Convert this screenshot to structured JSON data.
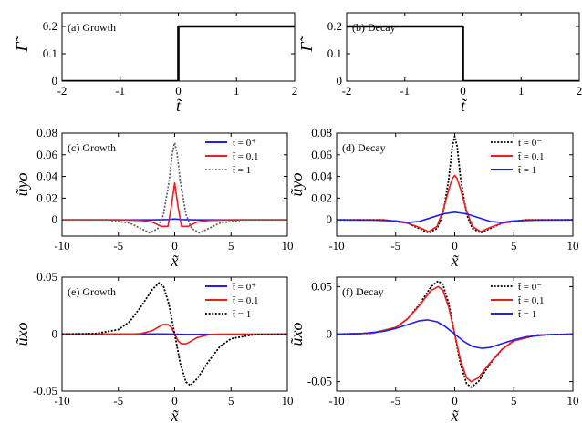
{
  "chart_data": [
    {
      "id": "a",
      "type": "line",
      "annotation": "(a) Growth",
      "xlabel": "t̃",
      "ylabel": "Γ̃",
      "xlim": [
        -2,
        2
      ],
      "ylim": [
        0,
        0.25
      ],
      "xticks": [
        "-2",
        "-1",
        "0",
        "1",
        "2"
      ],
      "yticks": [
        "0",
        "0.1",
        "0.2"
      ],
      "series": [
        {
          "color": "#000000",
          "style": "solid",
          "x": [
            -2,
            0,
            0,
            2
          ],
          "y": [
            0,
            0,
            0.2,
            0.2
          ]
        }
      ]
    },
    {
      "id": "b",
      "type": "line",
      "annotation": "(b) Decay",
      "xlabel": "t̃",
      "ylabel": "Γ̃",
      "xlim": [
        -2,
        2
      ],
      "ylim": [
        0,
        0.25
      ],
      "xticks": [
        "-2",
        "-1",
        "0",
        "1",
        "2"
      ],
      "yticks": [
        "0",
        "0.1",
        "0.2"
      ],
      "series": [
        {
          "color": "#000000",
          "style": "solid",
          "x": [
            -2,
            0,
            0,
            2
          ],
          "y": [
            0.2,
            0.2,
            0,
            0
          ]
        }
      ]
    },
    {
      "id": "c",
      "type": "line",
      "annotation": "(c) Growth",
      "xlabel": "x̃",
      "ylabel": "ũyo",
      "xlim": [
        -10,
        10
      ],
      "ylim": [
        -0.015,
        0.08
      ],
      "xticks": [
        "-10",
        "-5",
        "0",
        "5",
        "10"
      ],
      "yticks": [
        "0",
        "0.02",
        "0.04",
        "0.06",
        "0.08"
      ],
      "legend": "top-right",
      "series": [
        {
          "name": "t̃ = 0⁺",
          "color": "#1f1ff0",
          "style": "solid",
          "x": [
            -10,
            -2,
            -0.5,
            0,
            0.5,
            2,
            10
          ],
          "y": [
            0,
            0,
            0.0003,
            0.0008,
            0.0003,
            0,
            0
          ]
        },
        {
          "name": "t̃ = 0.1",
          "color": "#ee1c1c",
          "style": "solid",
          "x": [
            -10,
            -5,
            -3,
            -2,
            -1.2,
            -0.6,
            -0.3,
            0,
            0.3,
            0.6,
            1.2,
            2,
            3,
            5,
            10
          ],
          "y": [
            0,
            0,
            -0.0005,
            -0.002,
            -0.006,
            -0.006,
            0.012,
            0.034,
            0.012,
            -0.006,
            -0.006,
            -0.002,
            -0.0005,
            0,
            0
          ]
        },
        {
          "name": "t̃ = 1",
          "color": "#666666",
          "style": "dotted",
          "x": [
            -10,
            -6,
            -4,
            -3,
            -2.2,
            -1.5,
            -1,
            -0.5,
            -0.2,
            0,
            0.2,
            0.5,
            1,
            1.5,
            2.2,
            3,
            4,
            6,
            10
          ],
          "y": [
            0,
            0,
            -0.003,
            -0.008,
            -0.012,
            -0.008,
            0.005,
            0.035,
            0.062,
            0.071,
            0.062,
            0.035,
            0.005,
            -0.008,
            -0.012,
            -0.008,
            -0.003,
            0,
            0
          ]
        }
      ]
    },
    {
      "id": "d",
      "type": "line",
      "annotation": "(d) Decay",
      "xlabel": "x̃",
      "ylabel": "ũyo",
      "xlim": [
        -10,
        10
      ],
      "ylim": [
        -0.015,
        0.08
      ],
      "xticks": [
        "-10",
        "-5",
        "0",
        "5",
        "10"
      ],
      "yticks": [
        "0",
        "0.02",
        "0.04",
        "0.06",
        "0.08"
      ],
      "legend": "top-right",
      "series": [
        {
          "name": "t̃ = 0⁻",
          "color": "#000000",
          "style": "dotted",
          "x": [
            -10,
            -6,
            -4,
            -3,
            -2.2,
            -1.5,
            -1,
            -0.5,
            -0.2,
            0,
            0.2,
            0.5,
            1,
            1.5,
            2.2,
            3,
            4,
            6,
            10
          ],
          "y": [
            0,
            0,
            -0.003,
            -0.008,
            -0.012,
            -0.008,
            0.005,
            0.038,
            0.068,
            0.077,
            0.068,
            0.038,
            0.005,
            -0.008,
            -0.012,
            -0.008,
            -0.003,
            0,
            0
          ]
        },
        {
          "name": "t̃ = 0.1",
          "color": "#ee1c1c",
          "style": "solid",
          "x": [
            -10,
            -6,
            -4,
            -3,
            -2.2,
            -1.5,
            -1,
            -0.5,
            -0.2,
            0,
            0.2,
            0.5,
            1,
            1.5,
            2.2,
            3,
            4,
            6,
            10
          ],
          "y": [
            0,
            0,
            -0.003,
            -0.007,
            -0.011,
            -0.006,
            0.008,
            0.028,
            0.038,
            0.041,
            0.038,
            0.028,
            0.008,
            -0.006,
            -0.011,
            -0.007,
            -0.003,
            0,
            0
          ]
        },
        {
          "name": "t̃ = 1",
          "color": "#1f1ff0",
          "style": "solid",
          "x": [
            -10,
            -7,
            -5,
            -4,
            -3,
            -2,
            -1,
            0,
            1,
            2,
            3,
            4,
            5,
            7,
            10
          ],
          "y": [
            0,
            -0.0003,
            -0.001,
            -0.0025,
            -0.0015,
            0.002,
            0.0055,
            0.007,
            0.0055,
            0.002,
            -0.0015,
            -0.0025,
            -0.001,
            -0.0003,
            0
          ]
        }
      ]
    },
    {
      "id": "e",
      "type": "line",
      "annotation": "(e) Growth",
      "xlabel": "x̃",
      "ylabel": "ũxo",
      "xlim": [
        -10,
        10
      ],
      "ylim": [
        -0.05,
        0.05
      ],
      "xticks": [
        "-10",
        "-5",
        "0",
        "5",
        "10"
      ],
      "yticks": [
        "-0.05",
        "0",
        "0.05"
      ],
      "legend": "top-right",
      "series": [
        {
          "name": "t̃ = 0⁺",
          "color": "#1f1ff0",
          "style": "solid",
          "x": [
            -10,
            -1,
            0,
            1,
            10
          ],
          "y": [
            0,
            0.0002,
            0,
            -0.0002,
            0
          ]
        },
        {
          "name": "t̃ = 0.1",
          "color": "#ee1c1c",
          "style": "solid",
          "x": [
            -10,
            -4,
            -3,
            -2,
            -1.3,
            -1,
            -0.6,
            -0.3,
            0,
            0.3,
            0.6,
            1,
            1.3,
            2,
            3,
            4,
            10
          ],
          "y": [
            0,
            0,
            0.0005,
            0.003,
            0.007,
            0.0085,
            0.0085,
            0.006,
            0,
            -0.006,
            -0.0085,
            -0.0085,
            -0.007,
            -0.003,
            -0.0005,
            0,
            0
          ]
        },
        {
          "name": "t̃ = 1",
          "color": "#000000",
          "style": "dotted",
          "x": [
            -10,
            -7,
            -5,
            -4,
            -3,
            -2,
            -1.4,
            -1,
            -0.5,
            0,
            0.5,
            1,
            1.4,
            2,
            3,
            4,
            5,
            7,
            10
          ],
          "y": [
            0,
            0.0005,
            0.004,
            0.011,
            0.024,
            0.039,
            0.045,
            0.042,
            0.026,
            0,
            -0.026,
            -0.042,
            -0.045,
            -0.039,
            -0.024,
            -0.011,
            -0.004,
            -0.0005,
            0
          ]
        }
      ]
    },
    {
      "id": "f",
      "type": "line",
      "annotation": "(f) Decay",
      "xlabel": "x̃",
      "ylabel": "ũxo",
      "xlim": [
        -10,
        10
      ],
      "ylim": [
        -0.06,
        0.06
      ],
      "xticks": [
        "-10",
        "-5",
        "0",
        "5",
        "10"
      ],
      "yticks": [
        "-0.05",
        "0",
        "0.05"
      ],
      "legend": "top-right",
      "series": [
        {
          "name": "t̃ = 0⁻",
          "color": "#000000",
          "style": "dotted",
          "x": [
            -10,
            -7,
            -5,
            -4,
            -3,
            -2,
            -1.4,
            -1,
            -0.5,
            0,
            0.5,
            1,
            1.4,
            2,
            3,
            4,
            5,
            7,
            10
          ],
          "y": [
            0,
            0.001,
            0.007,
            0.016,
            0.031,
            0.05,
            0.056,
            0.052,
            0.032,
            0,
            -0.032,
            -0.052,
            -0.056,
            -0.05,
            -0.031,
            -0.016,
            -0.007,
            -0.001,
            0
          ]
        },
        {
          "name": "t̃ = 0.1",
          "color": "#ee1c1c",
          "style": "solid",
          "x": [
            -10,
            -7,
            -5,
            -4,
            -3,
            -2,
            -1.4,
            -1,
            -0.5,
            0,
            0.5,
            1,
            1.4,
            2,
            3,
            4,
            5,
            7,
            10
          ],
          "y": [
            0,
            0.001,
            0.007,
            0.016,
            0.03,
            0.046,
            0.05,
            0.046,
            0.028,
            0,
            -0.028,
            -0.046,
            -0.05,
            -0.046,
            -0.03,
            -0.016,
            -0.007,
            -0.001,
            0
          ]
        },
        {
          "name": "t̃ = 1",
          "color": "#1f1ff0",
          "style": "solid",
          "x": [
            -10,
            -8,
            -6,
            -5,
            -4,
            -3,
            -2.3,
            -1.5,
            -0.8,
            0,
            0.8,
            1.5,
            2.3,
            3,
            4,
            5,
            6,
            8,
            10
          ],
          "y": [
            0,
            0.0005,
            0.003,
            0.006,
            0.01,
            0.014,
            0.015,
            0.013,
            0.008,
            0,
            -0.008,
            -0.013,
            -0.015,
            -0.014,
            -0.01,
            -0.006,
            -0.003,
            -0.0005,
            0
          ]
        }
      ]
    }
  ]
}
